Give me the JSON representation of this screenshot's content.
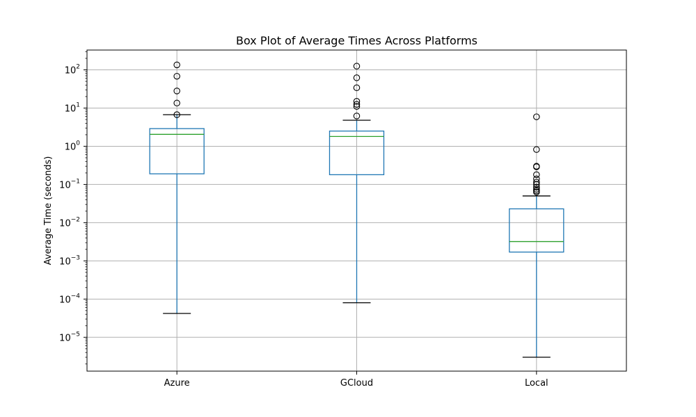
{
  "chart_data": {
    "type": "boxplot",
    "title": "Box Plot of Average Times Across Platforms",
    "xlabel": "",
    "ylabel": "Average Time (seconds)",
    "yscale": "log",
    "ylim": [
      1.3e-06,
      330
    ],
    "grid": true,
    "y_ticks": [
      {
        "value": 1e-05,
        "base": "10",
        "exp": "−5"
      },
      {
        "value": 0.0001,
        "base": "10",
        "exp": "−4"
      },
      {
        "value": 0.001,
        "base": "10",
        "exp": "−3"
      },
      {
        "value": 0.01,
        "base": "10",
        "exp": "−2"
      },
      {
        "value": 0.1,
        "base": "10",
        "exp": "−1"
      },
      {
        "value": 1,
        "base": "10",
        "exp": "0"
      },
      {
        "value": 10,
        "base": "10",
        "exp": "1"
      },
      {
        "value": 100,
        "base": "10",
        "exp": "2"
      }
    ],
    "categories": [
      "Azure",
      "GCloud",
      "Local"
    ],
    "boxes": [
      {
        "name": "Azure",
        "whisker_low": 4.2e-05,
        "q1": 0.19,
        "median": 2.05,
        "q3": 2.9,
        "whisker_high": 6.7,
        "outliers": [
          135,
          68,
          28,
          13.5,
          6.7
        ]
      },
      {
        "name": "GCloud",
        "whisker_low": 8e-05,
        "q1": 0.18,
        "median": 1.8,
        "q3": 2.5,
        "whisker_high": 4.8,
        "outliers": [
          125,
          62,
          34,
          15,
          12.5,
          11,
          6.2
        ]
      },
      {
        "name": "Local",
        "whisker_low": 3e-06,
        "q1": 0.0017,
        "median": 0.0032,
        "q3": 0.023,
        "whisker_high": 0.05,
        "outliers": [
          5.9,
          0.82,
          0.3,
          0.29,
          0.18,
          0.14,
          0.115,
          0.1,
          0.085,
          0.075,
          0.068,
          0.063
        ]
      }
    ],
    "colors": {
      "box": "#1f77b4",
      "median": "#2ca02c",
      "whisker_cap": "#000000",
      "outlier": "#000000",
      "grid": "#b0b0b0"
    }
  }
}
